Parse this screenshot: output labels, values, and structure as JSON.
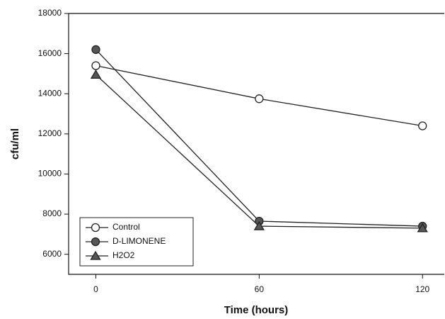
{
  "chart_data": {
    "type": "line",
    "x_label": "Time (hours)",
    "y_label": "cfu/ml",
    "x": [
      0,
      60,
      120
    ],
    "series": [
      {
        "name": "Control",
        "color": "#ffffff",
        "marker": "circle",
        "values": [
          15400,
          13750,
          12400
        ]
      },
      {
        "name": "D-LIMONENE",
        "color": "#555555",
        "marker": "circle",
        "values": [
          16200,
          7650,
          7400
        ]
      },
      {
        "name": "H2O2",
        "color": "#555555",
        "marker": "triangle",
        "values": [
          14950,
          7400,
          7300
        ]
      }
    ],
    "xlim": [
      -10,
      128
    ],
    "xticks": [
      0,
      60,
      120
    ],
    "ylim": [
      5000,
      18000
    ],
    "yticks": [
      6000,
      8000,
      10000,
      12000,
      14000,
      16000,
      18000
    ],
    "grid": false,
    "legend": "lower-left"
  }
}
